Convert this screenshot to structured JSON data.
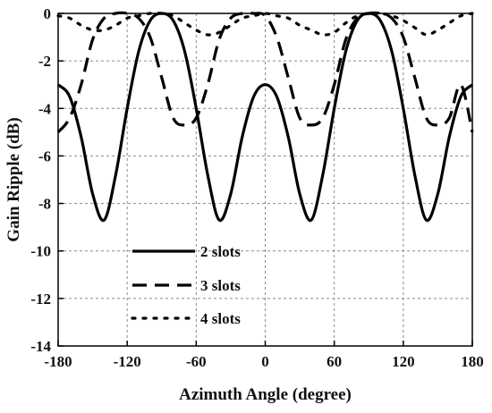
{
  "chart_data": {
    "type": "line",
    "xlabel": "Azimuth Angle (degree)",
    "ylabel": "Gain Ripple (dB)",
    "xlim": [
      -180,
      180
    ],
    "ylim": [
      -14,
      0
    ],
    "xticks": [
      -180,
      -120,
      -60,
      0,
      60,
      120,
      180
    ],
    "yticks": [
      0,
      -2,
      -4,
      -6,
      -8,
      -10,
      -12,
      -14
    ],
    "grid": true,
    "legend_position": "bottom-left",
    "series": [
      {
        "name": "2 slots",
        "line_style": "solid",
        "x": [
          -180,
          -170,
          -160,
          -150,
          -140,
          -130,
          -120,
          -110,
          -100,
          -90,
          -80,
          -70,
          -60,
          -50,
          -40,
          -30,
          -20,
          -10,
          0,
          10,
          20,
          30,
          40,
          50,
          60,
          70,
          80,
          90,
          100,
          110,
          120,
          130,
          140,
          150,
          160,
          170,
          180
        ],
        "y": [
          -3.0,
          -3.5,
          -5.2,
          -7.6,
          -8.7,
          -6.8,
          -4.0,
          -1.6,
          -0.3,
          0.0,
          -0.3,
          -1.6,
          -4.0,
          -6.8,
          -8.7,
          -7.6,
          -5.2,
          -3.5,
          -3.0,
          -3.5,
          -5.2,
          -7.6,
          -8.7,
          -6.8,
          -4.0,
          -1.6,
          -0.3,
          0.0,
          -0.3,
          -1.6,
          -4.0,
          -6.8,
          -8.7,
          -7.6,
          -5.2,
          -3.5,
          -3.0
        ]
      },
      {
        "name": "3 slots",
        "line_style": "dashed",
        "x": [
          -180,
          -170,
          -160,
          -150,
          -140,
          -130,
          -120,
          -110,
          -100,
          -90,
          -80,
          -70,
          -60,
          -50,
          -40,
          -30,
          -20,
          -10,
          0,
          10,
          20,
          30,
          40,
          50,
          60,
          70,
          80,
          90,
          100,
          110,
          120,
          130,
          140,
          150,
          160,
          170,
          180
        ],
        "y": [
          -5.0,
          -4.4,
          -3.0,
          -1.1,
          -0.2,
          0.0,
          0.0,
          -0.2,
          -1.0,
          -2.7,
          -4.4,
          -4.7,
          -4.4,
          -3.0,
          -1.1,
          -0.2,
          0.0,
          0.0,
          -0.1,
          -1.0,
          -2.7,
          -4.4,
          -4.7,
          -4.4,
          -3.0,
          -1.1,
          -0.2,
          0.0,
          0.0,
          -0.2,
          -1.0,
          -2.7,
          -4.4,
          -4.7,
          -4.4,
          -3.0,
          -5.0
        ]
      },
      {
        "name": "4 slots",
        "line_style": "dotted",
        "x": [
          -180,
          -170,
          -160,
          -150,
          -140,
          -130,
          -120,
          -110,
          -100,
          -90,
          -80,
          -70,
          -60,
          -50,
          -40,
          -30,
          -20,
          -10,
          0,
          10,
          20,
          30,
          40,
          50,
          60,
          70,
          80,
          90,
          100,
          110,
          120,
          130,
          140,
          150,
          160,
          170,
          180
        ],
        "y": [
          -0.1,
          -0.2,
          -0.5,
          -0.7,
          -0.7,
          -0.5,
          -0.2,
          -0.1,
          0.0,
          0.0,
          -0.1,
          -0.4,
          -0.7,
          -0.9,
          -0.8,
          -0.5,
          -0.2,
          -0.1,
          0.0,
          -0.1,
          -0.2,
          -0.5,
          -0.7,
          -0.9,
          -0.8,
          -0.4,
          -0.1,
          0.0,
          0.0,
          -0.1,
          -0.3,
          -0.6,
          -0.9,
          -0.7,
          -0.4,
          -0.1,
          0.0
        ]
      }
    ]
  }
}
